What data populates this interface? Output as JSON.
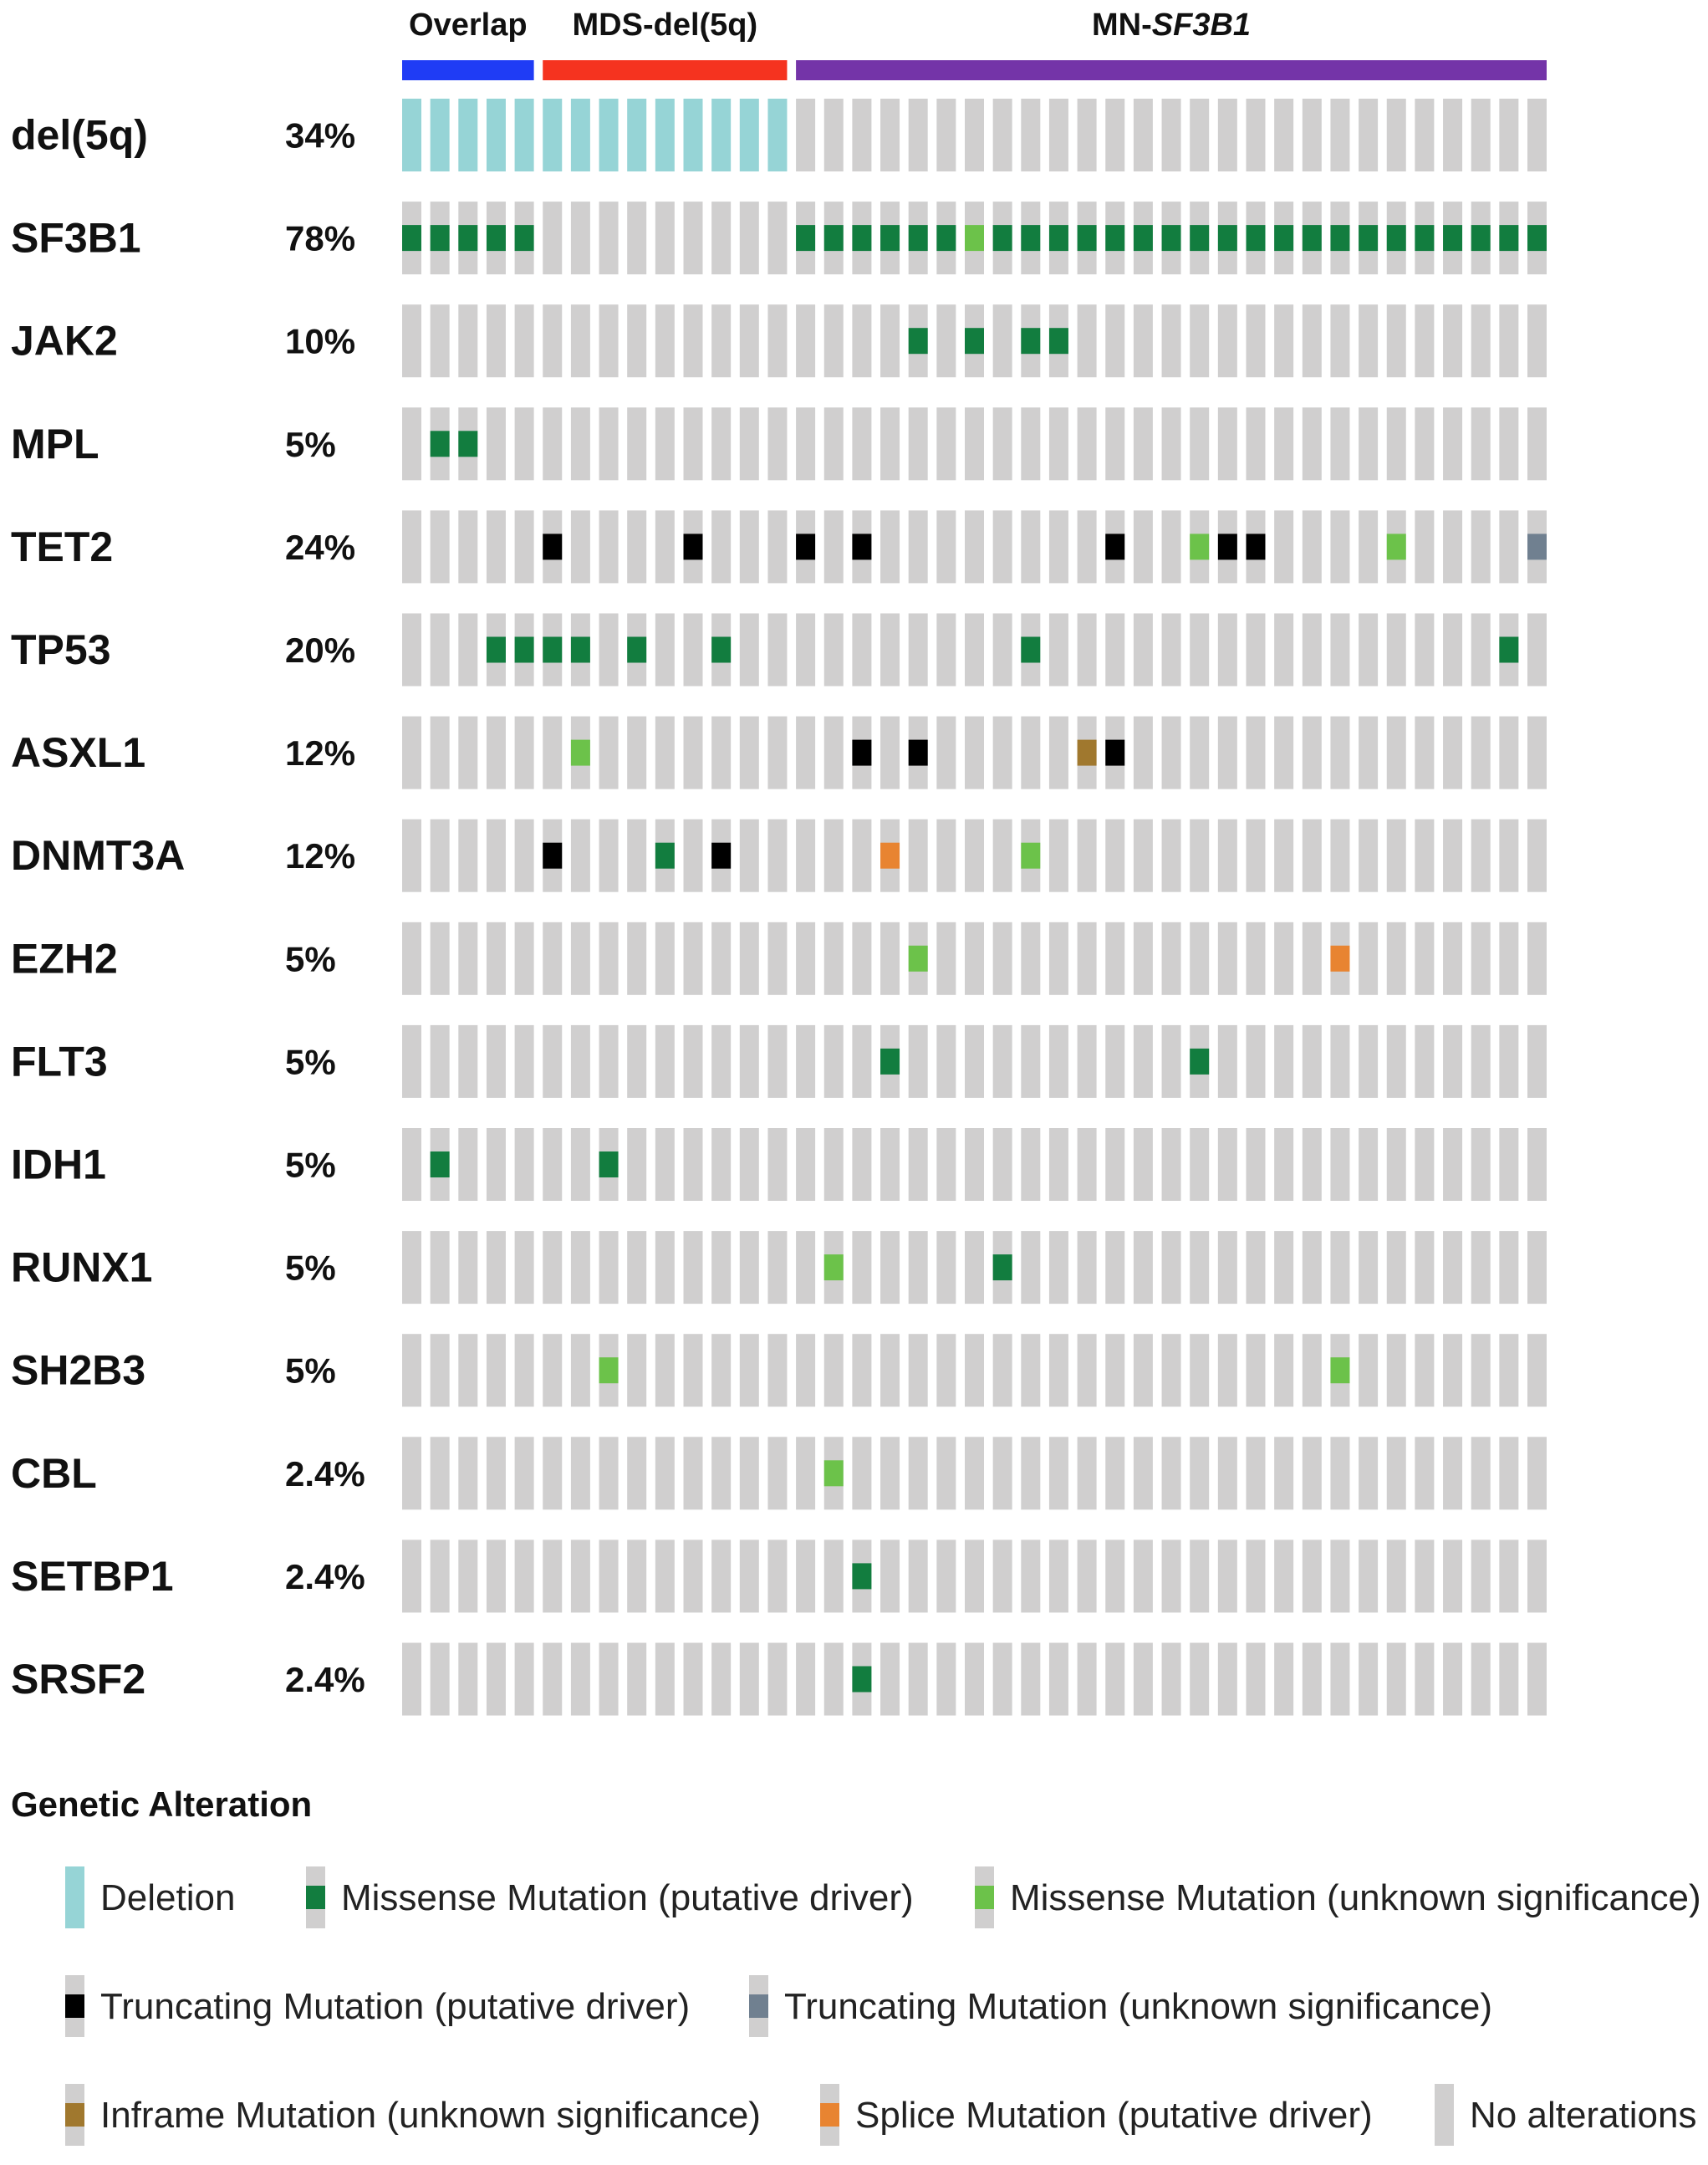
{
  "chart_data": {
    "type": "oncoprint",
    "n_samples": 41,
    "groups": [
      {
        "name": "Overlap",
        "prefix": "Overlap",
        "italic": "",
        "start": 0,
        "end": 4,
        "color": "#1f3cf5"
      },
      {
        "name": "MDS-del(5q)",
        "prefix": "MDS-del(5q)",
        "italic": "",
        "start": 5,
        "end": 13,
        "color": "#f5331f"
      },
      {
        "name": "MN-SF3B1",
        "prefix": "MN-",
        "italic": "SF3B1",
        "start": 14,
        "end": 40,
        "color": "#7434a8"
      }
    ],
    "genes": [
      {
        "name": "del(5q)",
        "pct": "34%",
        "alterations": [
          {
            "s": 0,
            "t": "deletion"
          },
          {
            "s": 1,
            "t": "deletion"
          },
          {
            "s": 2,
            "t": "deletion"
          },
          {
            "s": 3,
            "t": "deletion"
          },
          {
            "s": 4,
            "t": "deletion"
          },
          {
            "s": 5,
            "t": "deletion"
          },
          {
            "s": 6,
            "t": "deletion"
          },
          {
            "s": 7,
            "t": "deletion"
          },
          {
            "s": 8,
            "t": "deletion"
          },
          {
            "s": 9,
            "t": "deletion"
          },
          {
            "s": 10,
            "t": "deletion"
          },
          {
            "s": 11,
            "t": "deletion"
          },
          {
            "s": 12,
            "t": "deletion"
          },
          {
            "s": 13,
            "t": "deletion"
          }
        ]
      },
      {
        "name": "SF3B1",
        "pct": "78%",
        "alterations": [
          {
            "s": 0,
            "t": "missense_driver"
          },
          {
            "s": 1,
            "t": "missense_driver"
          },
          {
            "s": 2,
            "t": "missense_driver"
          },
          {
            "s": 3,
            "t": "missense_driver"
          },
          {
            "s": 4,
            "t": "missense_driver"
          },
          {
            "s": 14,
            "t": "missense_driver"
          },
          {
            "s": 15,
            "t": "missense_driver"
          },
          {
            "s": 16,
            "t": "missense_driver"
          },
          {
            "s": 17,
            "t": "missense_driver"
          },
          {
            "s": 18,
            "t": "missense_driver"
          },
          {
            "s": 19,
            "t": "missense_driver"
          },
          {
            "s": 20,
            "t": "missense_unknown"
          },
          {
            "s": 21,
            "t": "missense_driver"
          },
          {
            "s": 22,
            "t": "missense_driver"
          },
          {
            "s": 23,
            "t": "missense_driver"
          },
          {
            "s": 24,
            "t": "missense_driver"
          },
          {
            "s": 25,
            "t": "missense_driver"
          },
          {
            "s": 26,
            "t": "missense_driver"
          },
          {
            "s": 27,
            "t": "missense_driver"
          },
          {
            "s": 28,
            "t": "missense_driver"
          },
          {
            "s": 29,
            "t": "missense_driver"
          },
          {
            "s": 30,
            "t": "missense_driver"
          },
          {
            "s": 31,
            "t": "missense_driver"
          },
          {
            "s": 32,
            "t": "missense_driver"
          },
          {
            "s": 33,
            "t": "missense_driver"
          },
          {
            "s": 34,
            "t": "missense_driver"
          },
          {
            "s": 35,
            "t": "missense_driver"
          },
          {
            "s": 36,
            "t": "missense_driver"
          },
          {
            "s": 37,
            "t": "missense_driver"
          },
          {
            "s": 38,
            "t": "missense_driver"
          },
          {
            "s": 39,
            "t": "missense_driver"
          },
          {
            "s": 40,
            "t": "missense_driver"
          }
        ]
      },
      {
        "name": "JAK2",
        "pct": "10%",
        "alterations": [
          {
            "s": 18,
            "t": "missense_driver"
          },
          {
            "s": 20,
            "t": "missense_driver"
          },
          {
            "s": 22,
            "t": "missense_driver"
          },
          {
            "s": 23,
            "t": "missense_driver"
          }
        ]
      },
      {
        "name": "MPL",
        "pct": "5%",
        "alterations": [
          {
            "s": 1,
            "t": "missense_driver"
          },
          {
            "s": 2,
            "t": "missense_driver"
          }
        ]
      },
      {
        "name": "TET2",
        "pct": "24%",
        "alterations": [
          {
            "s": 5,
            "t": "truncating_driver"
          },
          {
            "s": 10,
            "t": "truncating_driver"
          },
          {
            "s": 14,
            "t": "truncating_driver"
          },
          {
            "s": 16,
            "t": "truncating_driver"
          },
          {
            "s": 25,
            "t": "truncating_driver"
          },
          {
            "s": 28,
            "t": "missense_unknown"
          },
          {
            "s": 29,
            "t": "truncating_driver"
          },
          {
            "s": 30,
            "t": "truncating_driver"
          },
          {
            "s": 35,
            "t": "missense_unknown"
          },
          {
            "s": 40,
            "t": "truncating_unknown"
          }
        ]
      },
      {
        "name": "TP53",
        "pct": "20%",
        "alterations": [
          {
            "s": 3,
            "t": "missense_driver"
          },
          {
            "s": 4,
            "t": "missense_driver"
          },
          {
            "s": 5,
            "t": "missense_driver"
          },
          {
            "s": 6,
            "t": "missense_driver"
          },
          {
            "s": 8,
            "t": "missense_driver"
          },
          {
            "s": 11,
            "t": "missense_driver"
          },
          {
            "s": 22,
            "t": "missense_driver"
          },
          {
            "s": 39,
            "t": "missense_driver"
          }
        ]
      },
      {
        "name": "ASXL1",
        "pct": "12%",
        "alterations": [
          {
            "s": 6,
            "t": "missense_unknown"
          },
          {
            "s": 16,
            "t": "truncating_driver"
          },
          {
            "s": 18,
            "t": "truncating_driver"
          },
          {
            "s": 24,
            "t": "inframe_unknown"
          },
          {
            "s": 25,
            "t": "truncating_driver"
          }
        ]
      },
      {
        "name": "DNMT3A",
        "pct": "12%",
        "alterations": [
          {
            "s": 5,
            "t": "truncating_driver"
          },
          {
            "s": 9,
            "t": "missense_driver"
          },
          {
            "s": 11,
            "t": "truncating_driver"
          },
          {
            "s": 17,
            "t": "splice_driver"
          },
          {
            "s": 22,
            "t": "missense_unknown"
          }
        ]
      },
      {
        "name": "EZH2",
        "pct": "5%",
        "alterations": [
          {
            "s": 18,
            "t": "missense_unknown"
          },
          {
            "s": 33,
            "t": "splice_driver"
          }
        ]
      },
      {
        "name": "FLT3",
        "pct": "5%",
        "alterations": [
          {
            "s": 17,
            "t": "missense_driver"
          },
          {
            "s": 28,
            "t": "missense_driver"
          }
        ]
      },
      {
        "name": "IDH1",
        "pct": "5%",
        "alterations": [
          {
            "s": 1,
            "t": "missense_driver"
          },
          {
            "s": 7,
            "t": "missense_driver"
          }
        ]
      },
      {
        "name": "RUNX1",
        "pct": "5%",
        "alterations": [
          {
            "s": 15,
            "t": "missense_unknown"
          },
          {
            "s": 21,
            "t": "missense_driver"
          }
        ]
      },
      {
        "name": "SH2B3",
        "pct": "5%",
        "alterations": [
          {
            "s": 7,
            "t": "missense_unknown"
          },
          {
            "s": 33,
            "t": "missense_unknown"
          }
        ]
      },
      {
        "name": "CBL",
        "pct": "2.4%",
        "alterations": [
          {
            "s": 15,
            "t": "missense_unknown"
          }
        ]
      },
      {
        "name": "SETBP1",
        "pct": "2.4%",
        "alterations": [
          {
            "s": 16,
            "t": "missense_driver"
          }
        ]
      },
      {
        "name": "SRSF2",
        "pct": "2.4%",
        "alterations": [
          {
            "s": 16,
            "t": "missense_driver"
          }
        ]
      }
    ],
    "legend": {
      "title": "Genetic Alteration",
      "items": [
        {
          "key": "deletion",
          "label": "Deletion",
          "color": "#96d4d6"
        },
        {
          "key": "missense_driver",
          "label": "Missense Mutation (putative driver)",
          "color": "#127d3f"
        },
        {
          "key": "missense_unknown",
          "label": "Missense Mutation (unknown significance)",
          "color": "#6cc24a"
        },
        {
          "key": "truncating_driver",
          "label": "Truncating Mutation (putative driver)",
          "color": "#000000"
        },
        {
          "key": "truncating_unknown",
          "label": "Truncating Mutation (unknown significance)",
          "color": "#708090"
        },
        {
          "key": "inframe_unknown",
          "label": "Inframe Mutation (unknown significance)",
          "color": "#a0782e"
        },
        {
          "key": "splice_driver",
          "label": "Splice Mutation (putative driver)",
          "color": "#e88431"
        },
        {
          "key": "none",
          "label": "No alterations",
          "color": "#d0cfcf"
        }
      ]
    }
  }
}
